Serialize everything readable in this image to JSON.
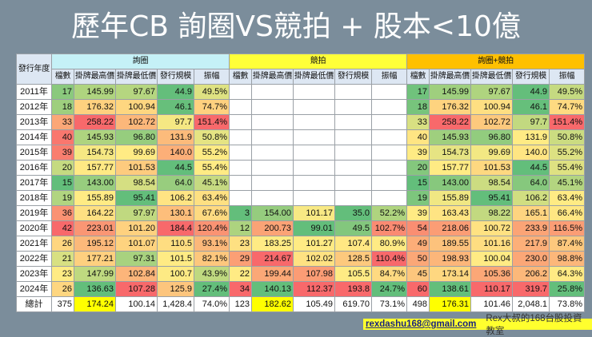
{
  "title": "歷年CB  詢圈VS競拍 + 股本<10億",
  "table": {
    "year_header": "發行年度",
    "groups": [
      "詢圈",
      "競拍",
      "詢圈+競拍"
    ],
    "sub_headers": [
      "檔數",
      "掛牌最高價",
      "掛牌最低價",
      "發行規模",
      "振幅"
    ],
    "rows": [
      {
        "year": "2011年",
        "inquiry": [
          "17",
          "145.99",
          "97.67",
          "44.9",
          "49.5%"
        ],
        "auction": [
          "",
          "",
          "",
          "",
          ""
        ],
        "combined": [
          "17",
          "145.99",
          "97.67",
          "44.9",
          "49.5%"
        ]
      },
      {
        "year": "2012年",
        "inquiry": [
          "18",
          "176.32",
          "100.94",
          "46.1",
          "74.7%"
        ],
        "auction": [
          "",
          "",
          "",
          "",
          ""
        ],
        "combined": [
          "18",
          "176.32",
          "100.94",
          "46.1",
          "74.7%"
        ]
      },
      {
        "year": "2013年",
        "inquiry": [
          "33",
          "258.22",
          "102.72",
          "97.7",
          "151.4%"
        ],
        "auction": [
          "",
          "",
          "",
          "",
          ""
        ],
        "combined": [
          "33",
          "258.22",
          "102.72",
          "97.7",
          "151.4%"
        ]
      },
      {
        "year": "2014年",
        "inquiry": [
          "40",
          "145.93",
          "96.80",
          "131.9",
          "50.8%"
        ],
        "auction": [
          "",
          "",
          "",
          "",
          ""
        ],
        "combined": [
          "40",
          "145.93",
          "96.80",
          "131.9",
          "50.8%"
        ]
      },
      {
        "year": "2015年",
        "inquiry": [
          "39",
          "154.73",
          "99.69",
          "140.0",
          "55.2%"
        ],
        "auction": [
          "",
          "",
          "",
          "",
          ""
        ],
        "combined": [
          "39",
          "154.73",
          "99.69",
          "140.0",
          "55.2%"
        ]
      },
      {
        "year": "2016年",
        "inquiry": [
          "20",
          "157.77",
          "101.53",
          "44.5",
          "55.4%"
        ],
        "auction": [
          "",
          "",
          "",
          "",
          ""
        ],
        "combined": [
          "20",
          "157.77",
          "101.53",
          "44.5",
          "55.4%"
        ]
      },
      {
        "year": "2017年",
        "inquiry": [
          "15",
          "143.00",
          "98.54",
          "64.0",
          "45.1%"
        ],
        "auction": [
          "",
          "",
          "",
          "",
          ""
        ],
        "combined": [
          "15",
          "143.00",
          "98.54",
          "64.0",
          "45.1%"
        ]
      },
      {
        "year": "2018年",
        "inquiry": [
          "19",
          "155.89",
          "95.41",
          "106.2",
          "63.4%"
        ],
        "auction": [
          "",
          "",
          "",
          "",
          ""
        ],
        "combined": [
          "19",
          "155.89",
          "95.41",
          "106.2",
          "63.4%"
        ]
      },
      {
        "year": "2019年",
        "inquiry": [
          "36",
          "164.22",
          "97.97",
          "130.1",
          "67.6%"
        ],
        "auction": [
          "3",
          "154.00",
          "101.17",
          "35.0",
          "52.2%"
        ],
        "combined": [
          "39",
          "163.43",
          "98.22",
          "165.1",
          "66.4%"
        ]
      },
      {
        "year": "2020年",
        "inquiry": [
          "42",
          "223.01",
          "101.20",
          "184.4",
          "120.4%"
        ],
        "auction": [
          "12",
          "200.73",
          "99.01",
          "49.5",
          "102.7%"
        ],
        "combined": [
          "54",
          "218.06",
          "100.72",
          "233.9",
          "116.5%"
        ]
      },
      {
        "year": "2021年",
        "inquiry": [
          "26",
          "195.12",
          "101.07",
          "110.5",
          "93.1%"
        ],
        "auction": [
          "23",
          "183.25",
          "101.27",
          "107.4",
          "80.9%"
        ],
        "combined": [
          "49",
          "189.55",
          "101.16",
          "217.9",
          "87.4%"
        ]
      },
      {
        "year": "2022年",
        "inquiry": [
          "21",
          "177.21",
          "97.31",
          "101.5",
          "82.1%"
        ],
        "auction": [
          "29",
          "214.67",
          "102.02",
          "128.5",
          "110.4%"
        ],
        "combined": [
          "50",
          "198.93",
          "100.04",
          "230.0",
          "98.8%"
        ]
      },
      {
        "year": "2023年",
        "inquiry": [
          "23",
          "147.99",
          "102.84",
          "100.7",
          "43.9%"
        ],
        "auction": [
          "22",
          "199.44",
          "107.98",
          "105.5",
          "84.7%"
        ],
        "combined": [
          "45",
          "173.14",
          "105.36",
          "206.2",
          "64.3%"
        ]
      },
      {
        "year": "2024年",
        "inquiry": [
          "26",
          "136.63",
          "107.28",
          "125.9",
          "27.4%"
        ],
        "auction": [
          "34",
          "140.13",
          "112.37",
          "193.8",
          "24.7%"
        ],
        "combined": [
          "60",
          "138.61",
          "110.17",
          "319.7",
          "25.8%"
        ]
      }
    ],
    "total": {
      "year": "總計",
      "inquiry": [
        "375",
        "174.24",
        "100.14",
        "1,428.4",
        "74.0%"
      ],
      "auction": [
        "123",
        "182.62",
        "105.49",
        "619.70",
        "73.1%"
      ],
      "combined": [
        "498",
        "176.31",
        "101.46",
        "2,048.1",
        "73.8%"
      ]
    }
  },
  "colors": {
    "low": "#63be7b",
    "mid": "#ffeb84",
    "high": "#f8696b",
    "highlight": "#ffff00"
  },
  "footer": {
    "email": "rexdashu168@gmail.com",
    "brand": "Rex大叔的168台股投資教室"
  }
}
